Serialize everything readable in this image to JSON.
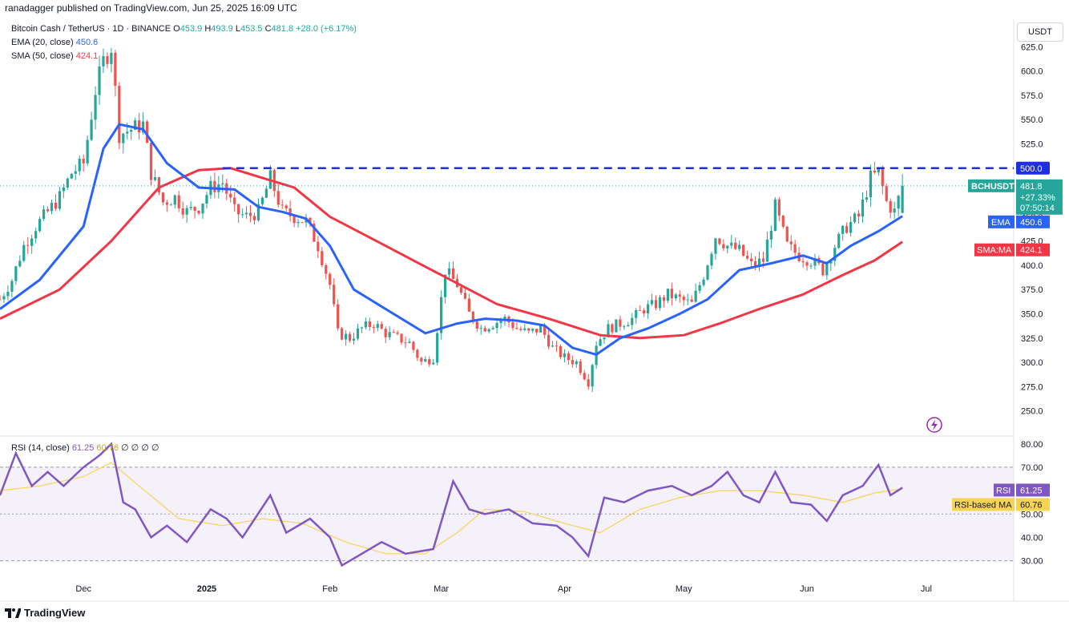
{
  "header": {
    "publisher_line": "ranadagger published on TradingView.com, Jun 25, 2025 16:09 UTC"
  },
  "legend": {
    "symbol": "Bitcoin Cash / TetherUS · 1D · BINANCE",
    "open_label": "O",
    "open": "453.9",
    "high_label": "H",
    "high": "493.9",
    "low_label": "L",
    "low": "453.5",
    "close_label": "C",
    "close": "481.8",
    "change": "+28.0 (+6.17%)",
    "ema_label": "EMA (20, close)",
    "ema_value": "450.6",
    "sma_label": "SMA (50, close)",
    "sma_value": "424.1",
    "rsi_label": "RSI (14, close)",
    "rsi_value": "61.25",
    "rsi_ma_value": "60.76",
    "rsi_extra": "∅ ∅ ∅ ∅"
  },
  "currency_box": "USDT",
  "footer": {
    "brand": "TradingView"
  },
  "colors": {
    "up": "#26a69a",
    "down": "#ef5350",
    "ema": "#2962ff",
    "sma": "#f23645",
    "rsi": "#7e57c2",
    "rsi_ma": "#f7d353",
    "level": "#1e2ee0"
  },
  "chart_data": [
    {
      "type": "candlestick",
      "title": "Bitcoin Cash / TetherUS · 1D · BINANCE",
      "ylim": [
        225,
        650
      ],
      "y_ticks": [
        250,
        275,
        300,
        325,
        350,
        375,
        400,
        425,
        450,
        475,
        500,
        525,
        550,
        575,
        600,
        625
      ],
      "y_tick_labels": [
        "250.0",
        "275.0",
        "300.0",
        "325.0",
        "350.0",
        "375.0",
        "400.0",
        "425.0",
        "450.0",
        "475.0",
        "500.0",
        "525.0",
        "550.0",
        "575.0",
        "600.0",
        "625.0"
      ],
      "x_ticks": [
        "Dec",
        "2025",
        "Feb",
        "Mar",
        "Apr",
        "May",
        "Jun",
        "Jul"
      ],
      "x_tick_dates": [
        "2024-12-01",
        "2025-01-01",
        "2025-02-01",
        "2025-03-01",
        "2025-04-01",
        "2025-05-01",
        "2025-06-01",
        "2025-07-01"
      ],
      "x_range": [
        "2024-11-10",
        "2025-07-23"
      ],
      "horizontal_level": {
        "value": 500.0,
        "label": "500.0"
      },
      "price_tags": [
        {
          "name": "BCHUSDT",
          "value": 481.8,
          "label": "481.8",
          "extra": [
            "+27.33%",
            "07:50:14"
          ]
        },
        {
          "name": "EMA",
          "value": 450.6,
          "label": "450.6"
        },
        {
          "name": "SMA:MA",
          "value": 424.1,
          "label": "424.1"
        }
      ],
      "close_series": [
        [
          "2024-11-10",
          365
        ],
        [
          "2024-11-13",
          385
        ],
        [
          "2024-11-16",
          420
        ],
        [
          "2024-11-19",
          440
        ],
        [
          "2024-11-22",
          455
        ],
        [
          "2024-11-25",
          470
        ],
        [
          "2024-11-28",
          495
        ],
        [
          "2024-12-01",
          505
        ],
        [
          "2024-12-04",
          580
        ],
        [
          "2024-12-06",
          610
        ],
        [
          "2024-12-08",
          625
        ],
        [
          "2024-12-10",
          535
        ],
        [
          "2024-12-13",
          540
        ],
        [
          "2024-12-16",
          545
        ],
        [
          "2024-12-18",
          495
        ],
        [
          "2024-12-21",
          465
        ],
        [
          "2024-12-24",
          470
        ],
        [
          "2024-12-27",
          455
        ],
        [
          "2024-12-30",
          460
        ],
        [
          "2025-01-02",
          480
        ],
        [
          "2025-01-05",
          485
        ],
        [
          "2025-01-08",
          455
        ],
        [
          "2025-01-11",
          450
        ],
        [
          "2025-01-14",
          455
        ],
        [
          "2025-01-17",
          490
        ],
        [
          "2025-01-20",
          455
        ],
        [
          "2025-01-23",
          450
        ],
        [
          "2025-01-26",
          445
        ],
        [
          "2025-01-29",
          420
        ],
        [
          "2025-02-01",
          380
        ],
        [
          "2025-02-03",
          330
        ],
        [
          "2025-02-06",
          325
        ],
        [
          "2025-02-09",
          335
        ],
        [
          "2025-02-12",
          340
        ],
        [
          "2025-02-15",
          330
        ],
        [
          "2025-02-18",
          325
        ],
        [
          "2025-02-21",
          320
        ],
        [
          "2025-02-24",
          300
        ],
        [
          "2025-02-27",
          305
        ],
        [
          "2025-03-02",
          395
        ],
        [
          "2025-03-05",
          380
        ],
        [
          "2025-03-08",
          350
        ],
        [
          "2025-03-11",
          335
        ],
        [
          "2025-03-14",
          340
        ],
        [
          "2025-03-17",
          345
        ],
        [
          "2025-03-20",
          335
        ],
        [
          "2025-03-23",
          330
        ],
        [
          "2025-03-26",
          335
        ],
        [
          "2025-03-29",
          315
        ],
        [
          "2025-04-01",
          305
        ],
        [
          "2025-04-04",
          300
        ],
        [
          "2025-04-07",
          280
        ],
        [
          "2025-04-09",
          320
        ],
        [
          "2025-04-12",
          335
        ],
        [
          "2025-04-15",
          340
        ],
        [
          "2025-04-18",
          345
        ],
        [
          "2025-04-21",
          355
        ],
        [
          "2025-04-24",
          360
        ],
        [
          "2025-04-27",
          370
        ],
        [
          "2025-04-30",
          365
        ],
        [
          "2025-05-03",
          360
        ],
        [
          "2025-05-06",
          390
        ],
        [
          "2025-05-09",
          430
        ],
        [
          "2025-05-12",
          420
        ],
        [
          "2025-05-15",
          415
        ],
        [
          "2025-05-18",
          400
        ],
        [
          "2025-05-21",
          405
        ],
        [
          "2025-05-24",
          460
        ],
        [
          "2025-05-27",
          420
        ],
        [
          "2025-05-30",
          410
        ],
        [
          "2025-06-02",
          405
        ],
        [
          "2025-06-05",
          395
        ],
        [
          "2025-06-08",
          420
        ],
        [
          "2025-06-11",
          440
        ],
        [
          "2025-06-14",
          450
        ],
        [
          "2025-06-17",
          490
        ],
        [
          "2025-06-19",
          495
        ],
        [
          "2025-06-21",
          465
        ],
        [
          "2025-06-23",
          455
        ],
        [
          "2025-06-25",
          481.8
        ]
      ],
      "ema20": [
        [
          "2024-11-10",
          355
        ],
        [
          "2024-11-20",
          385
        ],
        [
          "2024-12-01",
          440
        ],
        [
          "2024-12-06",
          520
        ],
        [
          "2024-12-10",
          545
        ],
        [
          "2024-12-16",
          540
        ],
        [
          "2024-12-22",
          505
        ],
        [
          "2024-12-30",
          480
        ],
        [
          "2025-01-08",
          478
        ],
        [
          "2025-01-14",
          460
        ],
        [
          "2025-01-20",
          455
        ],
        [
          "2025-01-26",
          448
        ],
        [
          "2025-02-01",
          420
        ],
        [
          "2025-02-07",
          375
        ],
        [
          "2025-02-15",
          355
        ],
        [
          "2025-02-25",
          330
        ],
        [
          "2025-03-05",
          340
        ],
        [
          "2025-03-12",
          345
        ],
        [
          "2025-03-20",
          343
        ],
        [
          "2025-03-27",
          338
        ],
        [
          "2025-04-03",
          315
        ],
        [
          "2025-04-09",
          308
        ],
        [
          "2025-04-15",
          325
        ],
        [
          "2025-04-22",
          335
        ],
        [
          "2025-04-30",
          350
        ],
        [
          "2025-05-07",
          365
        ],
        [
          "2025-05-15",
          395
        ],
        [
          "2025-05-23",
          402
        ],
        [
          "2025-05-31",
          410
        ],
        [
          "2025-06-06",
          402
        ],
        [
          "2025-06-12",
          420
        ],
        [
          "2025-06-19",
          435
        ],
        [
          "2025-06-25",
          450.6
        ]
      ],
      "sma50": [
        [
          "2024-11-10",
          345
        ],
        [
          "2024-11-25",
          375
        ],
        [
          "2024-12-08",
          425
        ],
        [
          "2024-12-20",
          480
        ],
        [
          "2024-12-30",
          498
        ],
        [
          "2025-01-07",
          500
        ],
        [
          "2025-01-15",
          490
        ],
        [
          "2025-01-23",
          480
        ],
        [
          "2025-02-01",
          450
        ],
        [
          "2025-02-15",
          420
        ],
        [
          "2025-03-01",
          390
        ],
        [
          "2025-03-15",
          360
        ],
        [
          "2025-03-28",
          345
        ],
        [
          "2025-04-10",
          328
        ],
        [
          "2025-04-20",
          325
        ],
        [
          "2025-05-01",
          328
        ],
        [
          "2025-05-10",
          340
        ],
        [
          "2025-05-20",
          355
        ],
        [
          "2025-05-31",
          370
        ],
        [
          "2025-06-10",
          390
        ],
        [
          "2025-06-18",
          405
        ],
        [
          "2025-06-25",
          424.1
        ]
      ]
    },
    {
      "type": "line",
      "title": "RSI (14, close)",
      "ylim": [
        23,
        83
      ],
      "y_ticks": [
        30,
        40,
        50,
        60,
        70,
        80
      ],
      "y_tick_labels": [
        "30.00",
        "40.00",
        "50.00",
        "60.00",
        "70.00",
        "80.00"
      ],
      "band": [
        30,
        70
      ],
      "mid_line": 50,
      "price_tags": [
        {
          "name": "RSI",
          "value": 61.25,
          "label": "61.25"
        },
        {
          "name": "RSI-based MA",
          "value": 60.76,
          "label": "60.76"
        }
      ],
      "series": [
        {
          "name": "RSI",
          "points": [
            [
              "2024-11-10",
              58
            ],
            [
              "2024-11-14",
              76
            ],
            [
              "2024-11-18",
              62
            ],
            [
              "2024-11-22",
              68
            ],
            [
              "2024-11-26",
              62
            ],
            [
              "2024-12-01",
              70
            ],
            [
              "2024-12-05",
              75
            ],
            [
              "2024-12-08",
              80
            ],
            [
              "2024-12-11",
              55
            ],
            [
              "2024-12-14",
              52
            ],
            [
              "2024-12-18",
              40
            ],
            [
              "2024-12-22",
              45
            ],
            [
              "2024-12-27",
              38
            ],
            [
              "2025-01-02",
              52
            ],
            [
              "2025-01-06",
              48
            ],
            [
              "2025-01-10",
              40
            ],
            [
              "2025-01-17",
              58
            ],
            [
              "2025-01-21",
              42
            ],
            [
              "2025-01-27",
              48
            ],
            [
              "2025-02-01",
              40
            ],
            [
              "2025-02-04",
              28
            ],
            [
              "2025-02-08",
              32
            ],
            [
              "2025-02-14",
              38
            ],
            [
              "2025-02-20",
              33
            ],
            [
              "2025-02-27",
              35
            ],
            [
              "2025-03-04",
              64
            ],
            [
              "2025-03-08",
              52
            ],
            [
              "2025-03-12",
              50
            ],
            [
              "2025-03-18",
              52
            ],
            [
              "2025-03-24",
              46
            ],
            [
              "2025-03-30",
              45
            ],
            [
              "2025-04-03",
              40
            ],
            [
              "2025-04-07",
              32
            ],
            [
              "2025-04-11",
              57
            ],
            [
              "2025-04-16",
              55
            ],
            [
              "2025-04-22",
              60
            ],
            [
              "2025-04-28",
              62
            ],
            [
              "2025-05-03",
              58
            ],
            [
              "2025-05-08",
              62
            ],
            [
              "2025-05-12",
              68
            ],
            [
              "2025-05-16",
              58
            ],
            [
              "2025-05-20",
              55
            ],
            [
              "2025-05-24",
              68
            ],
            [
              "2025-05-28",
              55
            ],
            [
              "2025-06-02",
              54
            ],
            [
              "2025-06-06",
              47
            ],
            [
              "2025-06-10",
              58
            ],
            [
              "2025-06-15",
              62
            ],
            [
              "2025-06-19",
              71
            ],
            [
              "2025-06-22",
              58
            ],
            [
              "2025-06-25",
              61.25
            ]
          ]
        },
        {
          "name": "RSI-based MA",
          "points": [
            [
              "2024-11-10",
              60
            ],
            [
              "2024-11-20",
              62
            ],
            [
              "2024-12-01",
              66
            ],
            [
              "2024-12-08",
              72
            ],
            [
              "2024-12-15",
              62
            ],
            [
              "2024-12-25",
              48
            ],
            [
              "2025-01-05",
              45
            ],
            [
              "2025-01-15",
              48
            ],
            [
              "2025-01-25",
              46
            ],
            [
              "2025-02-05",
              38
            ],
            [
              "2025-02-15",
              33
            ],
            [
              "2025-02-25",
              33
            ],
            [
              "2025-03-05",
              42
            ],
            [
              "2025-03-12",
              52
            ],
            [
              "2025-03-22",
              51
            ],
            [
              "2025-04-01",
              46
            ],
            [
              "2025-04-10",
              42
            ],
            [
              "2025-04-20",
              52
            ],
            [
              "2025-04-30",
              57
            ],
            [
              "2025-05-10",
              60
            ],
            [
              "2025-05-20",
              60
            ],
            [
              "2025-05-31",
              58
            ],
            [
              "2025-06-10",
              55
            ],
            [
              "2025-06-18",
              59
            ],
            [
              "2025-06-25",
              60.76
            ]
          ]
        }
      ]
    }
  ]
}
